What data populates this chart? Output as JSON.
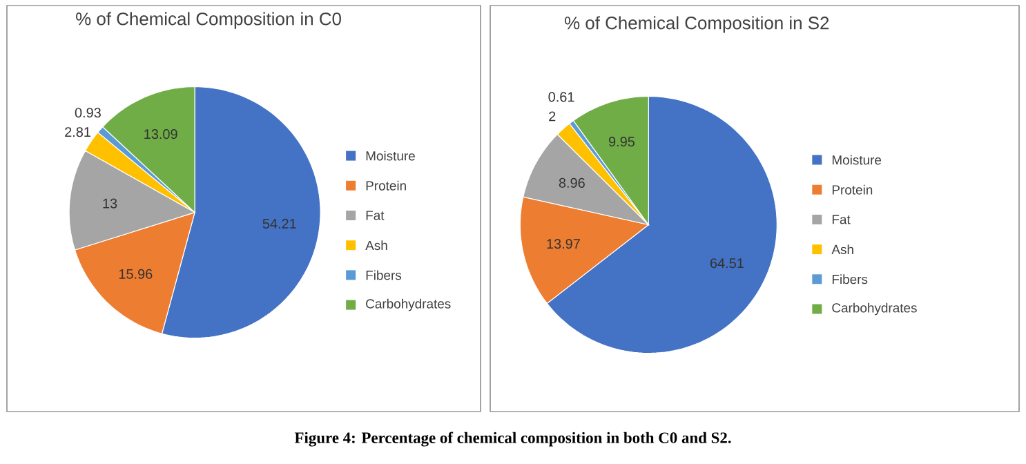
{
  "chart_data": [
    {
      "type": "pie",
      "title": "% of Chemical Composition in C0",
      "categories": [
        "Moisture",
        "Protein",
        "Fat",
        "Ash",
        "Fibers",
        "Carbohydrates"
      ],
      "values": [
        54.21,
        15.96,
        13,
        2.81,
        0.93,
        13.09
      ],
      "colors": [
        "#4472c4",
        "#ed7d31",
        "#a5a5a5",
        "#ffc000",
        "#5b9bd5",
        "#70ad47"
      ],
      "data_labels": true,
      "legend": "right",
      "annotations": [
        "Figure 4: Percentage of chemical composition in both C0 and S2."
      ]
    },
    {
      "type": "pie",
      "title": "% of Chemical Composition in S2",
      "categories": [
        "Moisture",
        "Protein",
        "Fat",
        "Ash",
        "Fibers",
        "Carbohydrates"
      ],
      "values": [
        64.51,
        13.97,
        8.96,
        2,
        0.61,
        9.95
      ],
      "colors": [
        "#4472c4",
        "#ed7d31",
        "#a5a5a5",
        "#ffc000",
        "#5b9bd5",
        "#70ad47"
      ],
      "data_labels": true,
      "legend": "right"
    }
  ]
}
